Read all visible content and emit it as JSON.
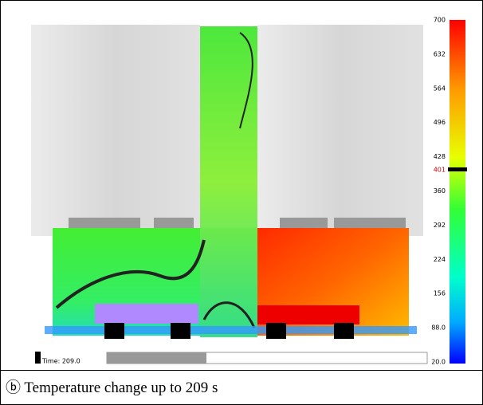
{
  "colorbar": {
    "ticks": [
      "700",
      "632",
      "564",
      "496",
      "428",
      "360",
      "292",
      "224",
      "156",
      "88.0",
      "20.0"
    ],
    "current": "401"
  },
  "time_label": "Time: 209.0",
  "caption": "ⓑ Temperature change up to 209 s"
}
